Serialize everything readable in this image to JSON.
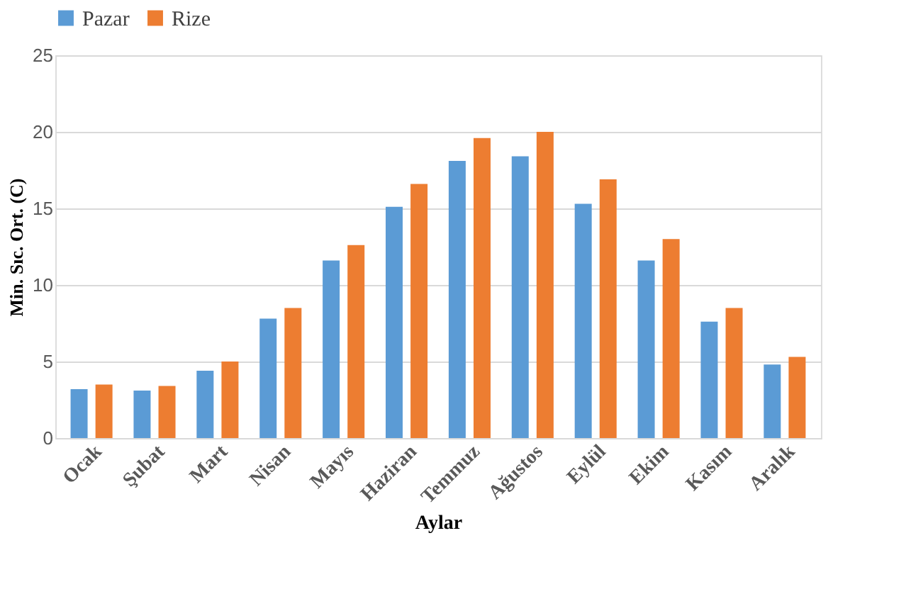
{
  "chart_data": {
    "type": "bar",
    "xlabel": "Aylar",
    "ylabel": "Min. Sıc. Ort. (C)",
    "categories": [
      "Ocak",
      "Şubat",
      "Mart",
      "Nisan",
      "Mayıs",
      "Haziran",
      "Temmuz",
      "Ağustos",
      "Eylül",
      "Ekim",
      "Kasım",
      "Aralık"
    ],
    "series": [
      {
        "name": "Pazar",
        "color": "#5b9bd5",
        "values": [
          3.2,
          3.1,
          4.4,
          7.8,
          11.6,
          15.1,
          18.1,
          18.4,
          15.3,
          11.6,
          7.6,
          4.8
        ]
      },
      {
        "name": "Rize",
        "color": "#ed7d31",
        "values": [
          3.5,
          3.4,
          5.0,
          8.5,
          12.6,
          16.6,
          19.6,
          20.0,
          16.9,
          13.0,
          8.5,
          5.3
        ]
      }
    ],
    "ylim": [
      0,
      25
    ],
    "yticks": [
      0,
      5,
      10,
      15,
      20,
      25
    ],
    "grid": "y",
    "legend": "top"
  }
}
